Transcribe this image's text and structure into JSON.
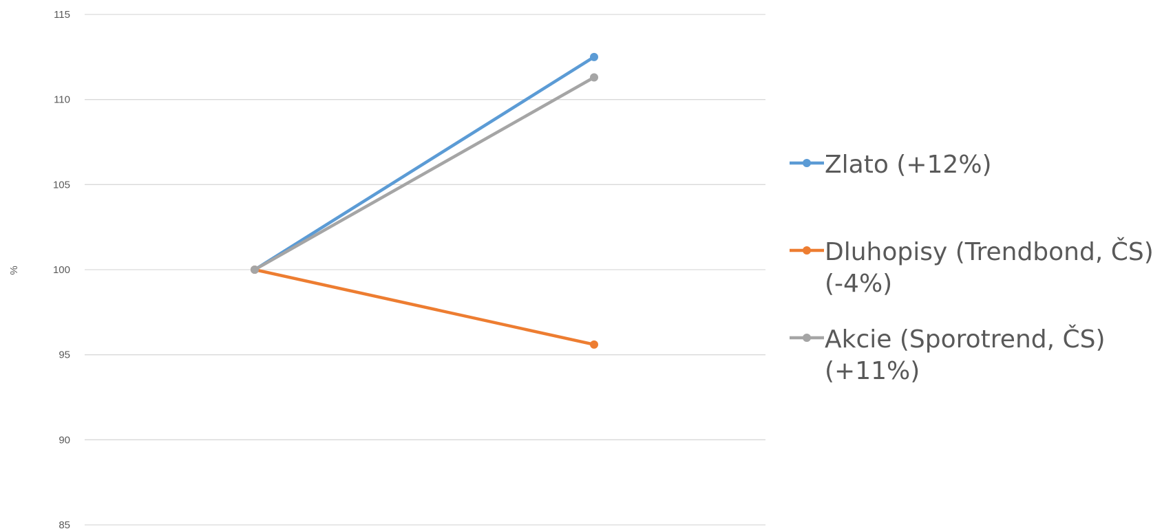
{
  "chart_data": {
    "type": "line",
    "title": "",
    "xlabel": "",
    "ylabel": "%",
    "ylim": [
      85,
      115
    ],
    "yticks": [
      85,
      90,
      95,
      100,
      105,
      110,
      115
    ],
    "grid": true,
    "legend_position": "right",
    "categories": [
      "",
      ""
    ],
    "series": [
      {
        "name": "Zlato (+12%)",
        "name_lines": [
          "Zlato (+12%)"
        ],
        "color": "#5B9BD5",
        "values": [
          100,
          112.5
        ]
      },
      {
        "name": "Dluhopisy (Trendbond, ČS) (-4%)",
        "name_lines": [
          "Dluhopisy (Trendbond, ČS)",
          "(-4%)"
        ],
        "color": "#ED7D31",
        "values": [
          100,
          95.6
        ]
      },
      {
        "name": "Akcie (Sporotrend, ČS) (+11%)",
        "name_lines": [
          "Akcie (Sporotrend, ČS)",
          "(+11%)"
        ],
        "color": "#A5A5A5",
        "values": [
          100,
          111.3
        ]
      }
    ]
  }
}
